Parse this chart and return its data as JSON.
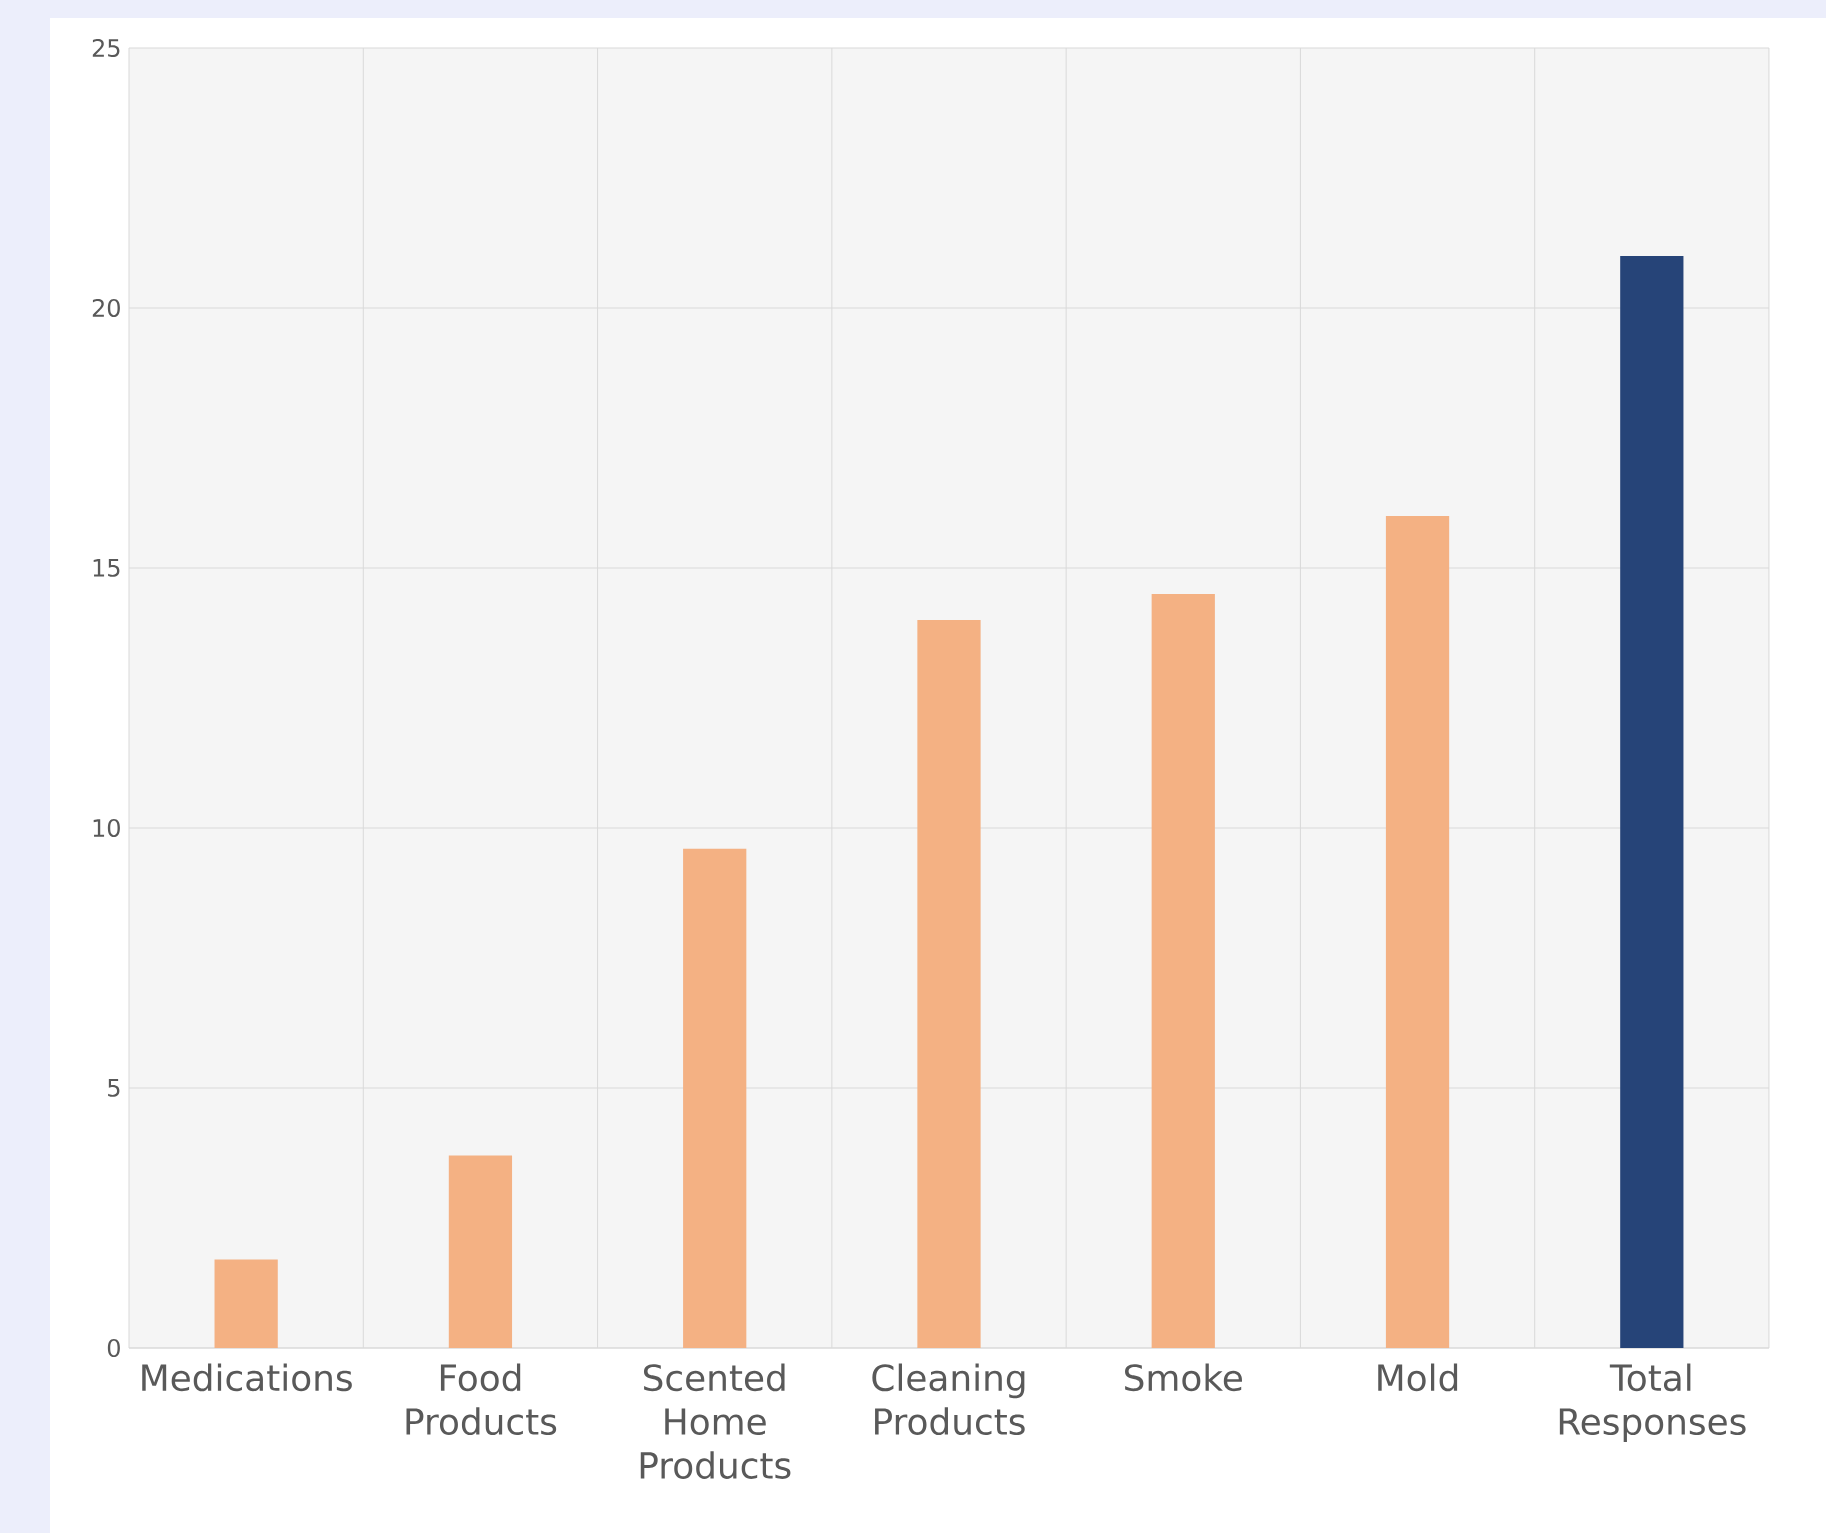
{
  "chart_data": {
    "type": "bar",
    "categories": [
      "Medications",
      "Food Products",
      "Scented Home Products",
      "Cleaning Products",
      "Smoke",
      "Mold",
      "Total Responses"
    ],
    "values": [
      1.7,
      3.7,
      9.6,
      14,
      14.5,
      16,
      21
    ],
    "colors": [
      "#f4b183",
      "#f4b183",
      "#f4b183",
      "#f4b183",
      "#f4b183",
      "#f4b183",
      "#264478"
    ],
    "ylim": [
      0,
      25
    ],
    "yticks": [
      0,
      5,
      10,
      15,
      20,
      25
    ],
    "grid": true
  }
}
